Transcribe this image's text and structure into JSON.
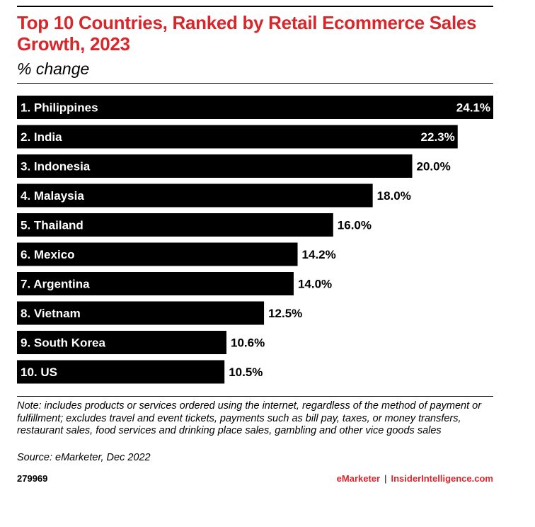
{
  "header": {
    "title": "Top 10 Countries, Ranked by Retail Ecommerce Sales Growth, 2023",
    "subtitle": "% change"
  },
  "chart_data": {
    "type": "bar",
    "orientation": "horizontal",
    "title": "Top 10 Countries, Ranked by Retail Ecommerce Sales Growth, 2023",
    "subtitle": "% change",
    "categories": [
      "1. Philippines",
      "2. India",
      "3. Indonesia",
      "4. Malaysia",
      "5. Thailand",
      "6. Mexico",
      "7. Argentina",
      "8. Vietnam",
      "9. South Korea",
      "10. US"
    ],
    "values": [
      24.1,
      22.3,
      20.0,
      18.0,
      16.0,
      14.2,
      14.0,
      12.5,
      10.6,
      10.5
    ],
    "value_labels": [
      "24.1%",
      "22.3%",
      "20.0%",
      "18.0%",
      "16.0%",
      "14.2%",
      "14.0%",
      "12.5%",
      "10.6%",
      "10.5%"
    ],
    "bar_color": "#000000",
    "label_color_inside": "#ffffff",
    "label_color_outside": "#000000",
    "grid": false,
    "legend": "none"
  },
  "footer": {
    "note": "Note: includes products or services ordered using the internet, regardless of the method of payment or fulfillment; excludes travel and event tickets, payments such as bill pay, taxes, or money transfers, restaurant sales, food services and drinking place sales, gambling and other vice goods sales",
    "source": "Source: eMarketer, Dec 2022",
    "chart_id": "279969",
    "brand_left": "eMarketer",
    "brand_separator": "|",
    "brand_right": "InsiderIntelligence.com"
  },
  "colors": {
    "accent": "#d9262b",
    "text": "#000000",
    "background": "#ffffff"
  }
}
